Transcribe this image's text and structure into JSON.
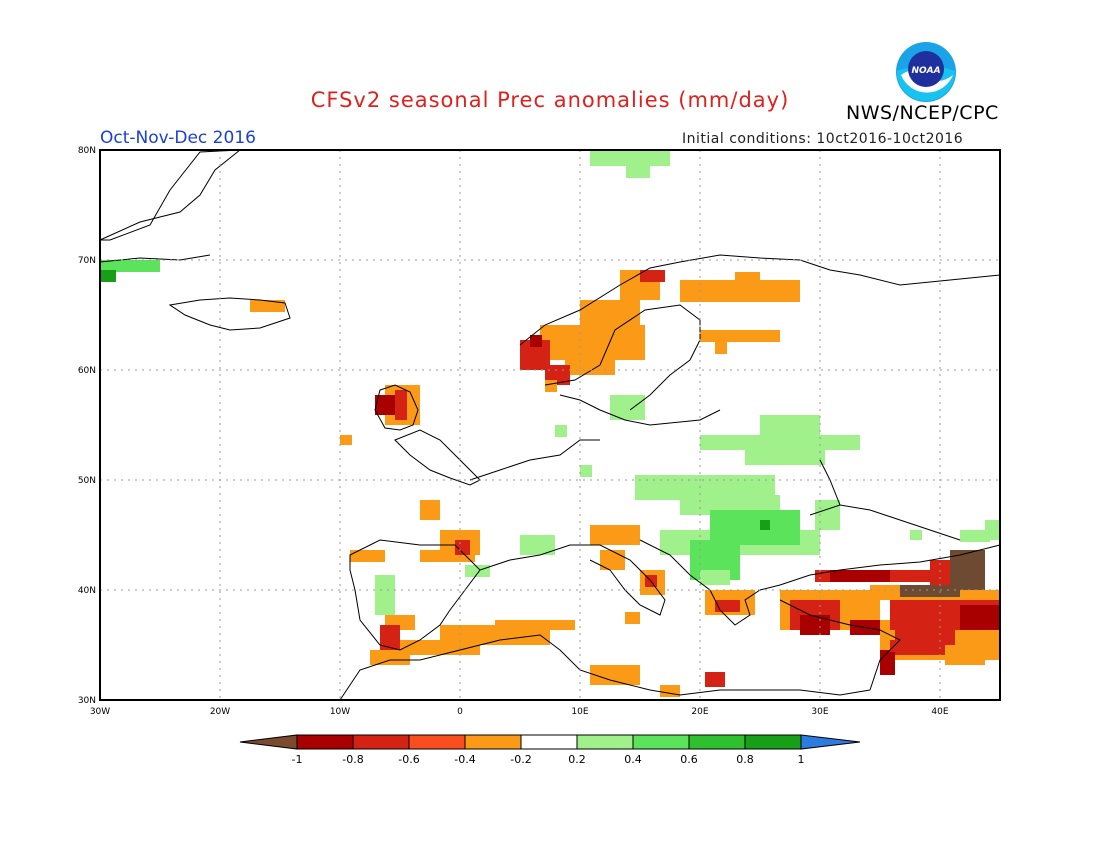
{
  "title": "CFSv2 seasonal Prec anomalies (mm/day)",
  "period": "Oct-Nov-Dec 2016",
  "initial_conditions": "Initial conditions: 10ct2016-10ct2016",
  "agency": "NWS/NCEP/CPC",
  "logo_text": "NOAA",
  "map": {
    "lon_range": [
      -30,
      45
    ],
    "lat_range": [
      30,
      80
    ],
    "lon_ticks": [
      "30W",
      "20W",
      "10W",
      "0",
      "10E",
      "20E",
      "30E",
      "40E"
    ],
    "lat_ticks": [
      "80N",
      "70N",
      "60N",
      "50N",
      "40N",
      "30N"
    ]
  },
  "legend": {
    "labels": [
      "-1",
      "-0.8",
      "-0.6",
      "-0.4",
      "-0.2",
      "0.2",
      "0.4",
      "0.6",
      "0.8",
      "1"
    ],
    "colors": [
      "#7a4b2e",
      "#a80000",
      "#d42214",
      "#fb4e1e",
      "#fb9a16",
      "#ffffff",
      "#a0f08c",
      "#5be35b",
      "#2ec02e",
      "#17a017",
      "#2c7be0"
    ]
  },
  "colors": {
    "light_green": "#a0f08c",
    "green": "#5be35b",
    "dark_green": "#17a017",
    "orange": "#fb9a16",
    "red_orange": "#fb4e1e",
    "red": "#d42214",
    "dark_red": "#a80000",
    "brown": "#6e4a32"
  }
}
